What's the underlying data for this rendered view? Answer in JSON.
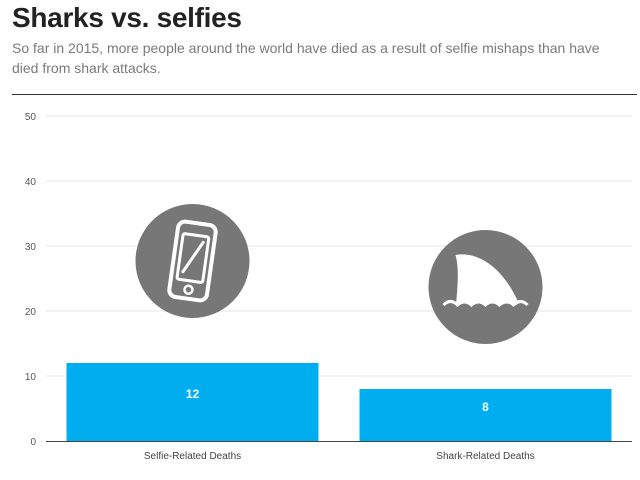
{
  "chart_data": {
    "type": "bar",
    "title": "Sharks vs. selfies",
    "subtitle": "So far in 2015, more people around the world have died as a result of selfie mishaps than have died from shark attacks.",
    "categories": [
      "Selfie-Related Deaths",
      "Shark-Related Deaths"
    ],
    "values": [
      12,
      8
    ],
    "data_labels": [
      "12",
      "8"
    ],
    "y_ticks": [
      "0",
      "10",
      "20",
      "30",
      "40",
      "50"
    ],
    "ylim": [
      0,
      50
    ],
    "xlabel": "",
    "ylabel": "",
    "grid": true,
    "legend": "none",
    "bar_color": "#00aeef",
    "icon_color": "#777777",
    "bar_icons": [
      "smartphone-icon",
      "shark-fin-icon"
    ]
  }
}
